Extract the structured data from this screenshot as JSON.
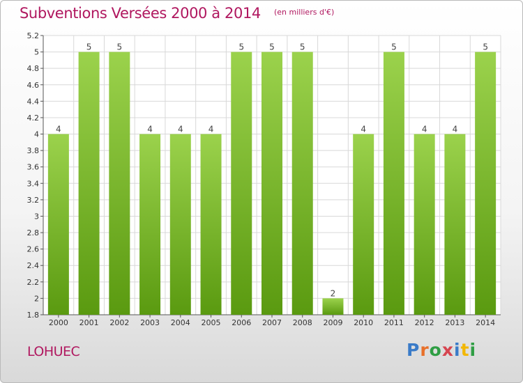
{
  "header": {
    "title": "Subventions Versées 2000 à 2014",
    "unit": "(en milliers d'€)"
  },
  "footer": {
    "town": "LOHUEC",
    "brand": "Proxiti",
    "brand_colors": [
      "#3a7bc8",
      "#e8702a",
      "#2f9e44",
      "#d64550",
      "#3a7bc8",
      "#f2b705",
      "#2f9e44"
    ]
  },
  "colors": {
    "bar_top": "#9bd24c",
    "bar_bottom": "#5a9a10",
    "grid": "#d8d8d8",
    "accent": "#b0175f"
  },
  "chart_data": {
    "type": "bar",
    "categories": [
      "2000",
      "2001",
      "2002",
      "2003",
      "2004",
      "2005",
      "2006",
      "2007",
      "2008",
      "2009",
      "2010",
      "2011",
      "2012",
      "2013",
      "2014"
    ],
    "values": [
      4,
      5,
      5,
      4,
      4,
      4,
      5,
      5,
      5,
      2,
      4,
      5,
      4,
      4,
      5
    ],
    "data_labels": [
      "4",
      "5",
      "5",
      "4",
      "4",
      "4",
      "5",
      "5",
      "5",
      "2",
      "4",
      "5",
      "4",
      "4",
      "5"
    ],
    "y_ticks": [
      "1.8",
      "2",
      "2.2",
      "2.4",
      "2.6",
      "2.8",
      "3",
      "3.2",
      "3.4",
      "3.6",
      "3.8",
      "4",
      "4.2",
      "4.4",
      "4.6",
      "4.8",
      "5",
      "5.2"
    ],
    "ylim": [
      1.8,
      5.2
    ],
    "grid": true,
    "xlabel": "",
    "ylabel": ""
  }
}
